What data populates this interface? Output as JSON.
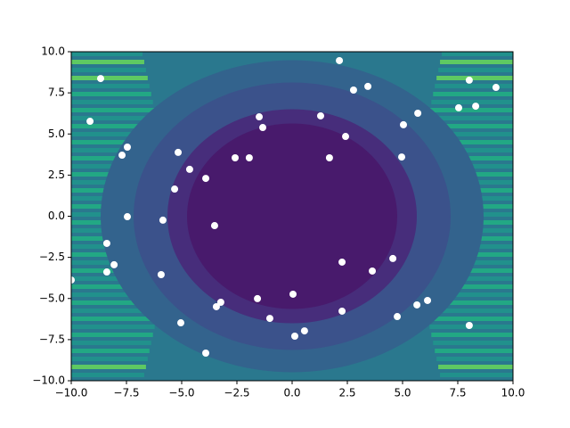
{
  "chart_data": {
    "type": "scatter",
    "color": "#ffffff",
    "x": [
      2.14,
      -8.67,
      8.02,
      9.23,
      2.78,
      3.43,
      7.54,
      8.31,
      5.69,
      1.29,
      -1.49,
      -1.33,
      5.04,
      -9.15,
      -7.46,
      -7.7,
      -5.16,
      2.42,
      1.69,
      4.96,
      -2.58,
      -1.94,
      -4.64,
      -3.91,
      -5.32,
      -7.46,
      -5.85,
      -3.51,
      -8.39,
      2.26,
      4.56,
      3.63,
      -8.06,
      -8.39,
      -5.93,
      -10,
      0.04,
      -1.57,
      -3.23,
      -3.43,
      5.65,
      6.13,
      2.26,
      -1.01,
      4.76,
      -5.04,
      8.02,
      0.56,
      0.12,
      -3.91
    ],
    "values": [
      9.46,
      8.37,
      8.27,
      7.83,
      7.67,
      7.89,
      6.59,
      6.69,
      6.26,
      6.1,
      6.04,
      5.39,
      5.56,
      5.77,
      4.2,
      3.71,
      3.88,
      4.85,
      3.55,
      3.6,
      3.55,
      3.55,
      2.85,
      2.3,
      1.65,
      -0.03,
      -0.24,
      -0.57,
      -1.65,
      -2.79,
      -2.57,
      -3.33,
      -2.95,
      -3.39,
      -3.55,
      -3.88,
      -4.74,
      -5.01,
      -5.23,
      -5.5,
      -5.39,
      -5.12,
      -5.77,
      -6.21,
      -6.1,
      -6.48,
      -6.64,
      -6.97,
      -7.29,
      -8.32
    ],
    "xlim": [
      -10,
      10
    ],
    "ylim": [
      -10,
      10
    ],
    "xticks": [
      {
        "value": -10,
        "label": "−10.0"
      },
      {
        "value": -7.5,
        "label": "−7.5"
      },
      {
        "value": -5,
        "label": "−5.0"
      },
      {
        "value": -2.5,
        "label": "−2.5"
      },
      {
        "value": 0,
        "label": "0.0"
      },
      2.5,
      {
        "value": 5,
        "label": "5.0"
      },
      7.5,
      {
        "value": 10,
        "label": "10.0"
      }
    ],
    "yticks": [
      {
        "value": -10,
        "label": "−10.0"
      },
      {
        "value": -7.5,
        "label": "−7.5"
      },
      {
        "value": -5,
        "label": "−5.0"
      },
      {
        "value": -2.5,
        "label": "−2.5"
      },
      {
        "value": 0,
        "label": "0.0"
      },
      2.5,
      {
        "value": 5,
        "label": "5.0"
      },
      7.5,
      {
        "value": 10,
        "label": "10.0"
      }
    ]
  }
}
